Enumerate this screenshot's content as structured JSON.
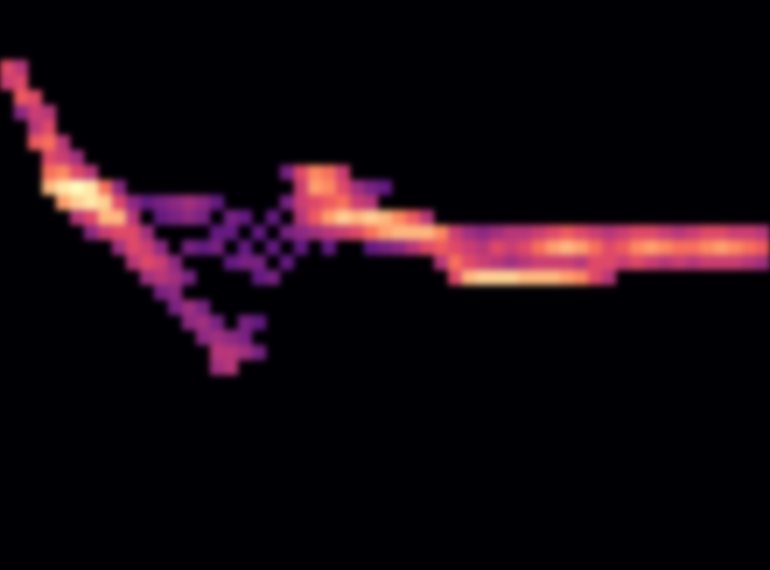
{
  "chart_data": {
    "type": "heatmap",
    "color": "magma",
    "tick_labels": false,
    "xlim": [
      0,
      55
    ],
    "ylim": [
      0,
      38
    ],
    "zlim": [
      0,
      1
    ],
    "cells": [
      [
        0,
        33,
        0.6
      ],
      [
        0,
        32,
        0.55
      ],
      [
        1,
        33,
        0.5
      ],
      [
        1,
        32,
        0.6
      ],
      [
        1,
        31,
        0.65
      ],
      [
        1,
        30,
        0.4
      ],
      [
        2,
        31,
        0.6
      ],
      [
        2,
        30,
        0.55
      ],
      [
        2,
        29,
        0.5
      ],
      [
        2,
        28,
        0.65
      ],
      [
        3,
        30,
        0.5
      ],
      [
        3,
        29,
        0.6
      ],
      [
        3,
        28,
        0.7
      ],
      [
        3,
        27,
        0.6
      ],
      [
        3,
        26,
        0.7
      ],
      [
        3,
        25,
        0.85
      ],
      [
        4,
        28,
        0.5
      ],
      [
        4,
        27,
        0.55
      ],
      [
        4,
        26,
        0.75
      ],
      [
        4,
        25,
        0.95
      ],
      [
        4,
        24,
        0.8
      ],
      [
        5,
        27,
        0.45
      ],
      [
        5,
        26,
        0.6
      ],
      [
        5,
        25,
        1.0
      ],
      [
        5,
        24,
        0.9
      ],
      [
        5,
        23,
        0.5
      ],
      [
        6,
        26,
        0.5
      ],
      [
        6,
        25,
        0.95
      ],
      [
        6,
        24,
        0.95
      ],
      [
        6,
        23,
        0.6
      ],
      [
        6,
        22,
        0.4
      ],
      [
        7,
        25,
        0.7
      ],
      [
        7,
        24,
        0.9
      ],
      [
        7,
        23,
        0.85
      ],
      [
        7,
        22,
        0.55
      ],
      [
        8,
        25,
        0.4
      ],
      [
        8,
        24,
        0.6
      ],
      [
        8,
        23,
        0.85
      ],
      [
        8,
        22,
        0.6
      ],
      [
        8,
        21,
        0.45
      ],
      [
        9,
        24,
        0.4
      ],
      [
        9,
        23,
        0.5
      ],
      [
        9,
        22,
        0.6
      ],
      [
        9,
        21,
        0.6
      ],
      [
        9,
        20,
        0.5
      ],
      [
        10,
        24,
        0.3
      ],
      [
        10,
        22,
        0.45
      ],
      [
        10,
        21,
        0.55
      ],
      [
        10,
        20,
        0.6
      ],
      [
        10,
        19,
        0.45
      ],
      [
        11,
        24,
        0.35
      ],
      [
        11,
        23,
        0.3
      ],
      [
        11,
        21,
        0.4
      ],
      [
        11,
        20,
        0.55
      ],
      [
        11,
        19,
        0.5
      ],
      [
        11,
        18,
        0.35
      ],
      [
        12,
        24,
        0.4
      ],
      [
        12,
        23,
        0.35
      ],
      [
        12,
        20,
        0.4
      ],
      [
        12,
        19,
        0.45
      ],
      [
        12,
        18,
        0.4
      ],
      [
        12,
        17,
        0.35
      ],
      [
        13,
        24,
        0.45
      ],
      [
        13,
        23,
        0.4
      ],
      [
        13,
        21,
        0.35
      ],
      [
        13,
        19,
        0.35
      ],
      [
        13,
        17,
        0.45
      ],
      [
        13,
        16,
        0.4
      ],
      [
        14,
        24,
        0.4
      ],
      [
        14,
        23,
        0.35
      ],
      [
        14,
        21,
        0.3
      ],
      [
        14,
        17,
        0.35
      ],
      [
        14,
        16,
        0.45
      ],
      [
        14,
        15,
        0.4
      ],
      [
        15,
        24,
        0.3
      ],
      [
        15,
        22,
        0.3
      ],
      [
        15,
        21,
        0.35
      ],
      [
        15,
        16,
        0.35
      ],
      [
        15,
        15,
        0.45
      ],
      [
        15,
        14,
        0.5
      ],
      [
        15,
        13,
        0.45
      ],
      [
        16,
        23,
        0.35
      ],
      [
        16,
        22,
        0.3
      ],
      [
        16,
        20,
        0.3
      ],
      [
        16,
        15,
        0.4
      ],
      [
        16,
        14,
        0.5
      ],
      [
        16,
        13,
        0.5
      ],
      [
        17,
        23,
        0.3
      ],
      [
        17,
        21,
        0.3
      ],
      [
        17,
        20,
        0.35
      ],
      [
        17,
        16,
        0.35
      ],
      [
        17,
        15,
        0.35
      ],
      [
        17,
        14,
        0.45
      ],
      [
        18,
        22,
        0.3
      ],
      [
        18,
        20,
        0.35
      ],
      [
        18,
        19,
        0.3
      ],
      [
        18,
        16,
        0.3
      ],
      [
        18,
        14,
        0.35
      ],
      [
        19,
        23,
        0.3
      ],
      [
        19,
        21,
        0.3
      ],
      [
        19,
        19,
        0.35
      ],
      [
        20,
        26,
        0.35
      ],
      [
        20,
        24,
        0.35
      ],
      [
        20,
        22,
        0.35
      ],
      [
        20,
        20,
        0.3
      ],
      [
        21,
        26,
        0.6
      ],
      [
        21,
        25,
        0.55
      ],
      [
        21,
        24,
        0.55
      ],
      [
        21,
        23,
        0.5
      ],
      [
        21,
        22,
        0.4
      ],
      [
        21,
        21,
        0.3
      ],
      [
        22,
        26,
        0.75
      ],
      [
        22,
        25,
        0.8
      ],
      [
        22,
        24,
        0.6
      ],
      [
        22,
        23,
        0.65
      ],
      [
        22,
        22,
        0.45
      ],
      [
        23,
        26,
        0.7
      ],
      [
        23,
        25,
        0.75
      ],
      [
        23,
        24,
        0.65
      ],
      [
        23,
        23,
        0.8
      ],
      [
        23,
        22,
        0.5
      ],
      [
        23,
        21,
        0.3
      ],
      [
        24,
        26,
        0.55
      ],
      [
        24,
        25,
        0.6
      ],
      [
        24,
        24,
        0.7
      ],
      [
        24,
        23,
        0.9
      ],
      [
        24,
        22,
        0.55
      ],
      [
        25,
        25,
        0.45
      ],
      [
        25,
        24,
        0.55
      ],
      [
        25,
        23,
        0.85
      ],
      [
        25,
        22,
        0.6
      ],
      [
        26,
        25,
        0.35
      ],
      [
        26,
        24,
        0.5
      ],
      [
        26,
        23,
        0.9
      ],
      [
        26,
        22,
        0.7
      ],
      [
        26,
        21,
        0.3
      ],
      [
        27,
        25,
        0.3
      ],
      [
        27,
        23,
        0.85
      ],
      [
        27,
        22,
        0.8
      ],
      [
        27,
        21,
        0.35
      ],
      [
        28,
        23,
        0.75
      ],
      [
        28,
        22,
        0.85
      ],
      [
        28,
        21,
        0.4
      ],
      [
        29,
        23,
        0.65
      ],
      [
        29,
        22,
        0.85
      ],
      [
        29,
        21,
        0.5
      ],
      [
        30,
        23,
        0.5
      ],
      [
        30,
        22,
        0.85
      ],
      [
        30,
        21,
        0.6
      ],
      [
        31,
        22,
        0.75
      ],
      [
        31,
        21,
        0.65
      ],
      [
        31,
        20,
        0.5
      ],
      [
        32,
        22,
        0.55
      ],
      [
        32,
        21,
        0.6
      ],
      [
        32,
        20,
        0.7
      ],
      [
        32,
        19,
        0.6
      ],
      [
        33,
        22,
        0.45
      ],
      [
        33,
        21,
        0.55
      ],
      [
        33,
        20,
        0.6
      ],
      [
        33,
        19,
        0.85
      ],
      [
        34,
        22,
        0.4
      ],
      [
        34,
        21,
        0.5
      ],
      [
        34,
        20,
        0.55
      ],
      [
        34,
        19,
        0.9
      ],
      [
        35,
        22,
        0.45
      ],
      [
        35,
        21,
        0.6
      ],
      [
        35,
        20,
        0.5
      ],
      [
        35,
        19,
        0.9
      ],
      [
        36,
        22,
        0.5
      ],
      [
        36,
        21,
        0.55
      ],
      [
        36,
        20,
        0.45
      ],
      [
        36,
        19,
        0.9
      ],
      [
        37,
        22,
        0.5
      ],
      [
        37,
        21,
        0.6
      ],
      [
        37,
        20,
        0.5
      ],
      [
        37,
        19,
        0.85
      ],
      [
        38,
        22,
        0.55
      ],
      [
        38,
        21,
        0.7
      ],
      [
        38,
        20,
        0.55
      ],
      [
        38,
        19,
        0.85
      ],
      [
        39,
        22,
        0.6
      ],
      [
        39,
        21,
        0.8
      ],
      [
        39,
        20,
        0.55
      ],
      [
        39,
        19,
        0.85
      ],
      [
        40,
        22,
        0.65
      ],
      [
        40,
        21,
        0.85
      ],
      [
        40,
        20,
        0.55
      ],
      [
        40,
        19,
        0.8
      ],
      [
        41,
        22,
        0.6
      ],
      [
        41,
        21,
        0.8
      ],
      [
        41,
        20,
        0.5
      ],
      [
        41,
        19,
        0.75
      ],
      [
        42,
        22,
        0.55
      ],
      [
        42,
        21,
        0.7
      ],
      [
        42,
        20,
        0.6
      ],
      [
        42,
        19,
        0.6
      ],
      [
        43,
        22,
        0.5
      ],
      [
        43,
        21,
        0.6
      ],
      [
        43,
        20,
        0.6
      ],
      [
        43,
        19,
        0.5
      ],
      [
        44,
        22,
        0.55
      ],
      [
        44,
        21,
        0.65
      ],
      [
        44,
        20,
        0.55
      ],
      [
        45,
        22,
        0.6
      ],
      [
        45,
        21,
        0.75
      ],
      [
        45,
        20,
        0.6
      ],
      [
        46,
        22,
        0.6
      ],
      [
        46,
        21,
        0.8
      ],
      [
        46,
        20,
        0.55
      ],
      [
        47,
        22,
        0.55
      ],
      [
        47,
        21,
        0.75
      ],
      [
        47,
        20,
        0.5
      ],
      [
        48,
        22,
        0.5
      ],
      [
        48,
        21,
        0.7
      ],
      [
        48,
        20,
        0.55
      ],
      [
        49,
        22,
        0.55
      ],
      [
        49,
        21,
        0.7
      ],
      [
        49,
        20,
        0.5
      ],
      [
        50,
        22,
        0.6
      ],
      [
        50,
        21,
        0.75
      ],
      [
        50,
        20,
        0.55
      ],
      [
        51,
        22,
        0.6
      ],
      [
        51,
        21,
        0.8
      ],
      [
        51,
        20,
        0.55
      ],
      [
        52,
        22,
        0.55
      ],
      [
        52,
        21,
        0.75
      ],
      [
        52,
        20,
        0.55
      ],
      [
        53,
        22,
        0.55
      ],
      [
        53,
        21,
        0.7
      ],
      [
        53,
        20,
        0.5
      ],
      [
        54,
        22,
        0.5
      ],
      [
        54,
        21,
        0.65
      ],
      [
        54,
        20,
        0.45
      ]
    ]
  }
}
